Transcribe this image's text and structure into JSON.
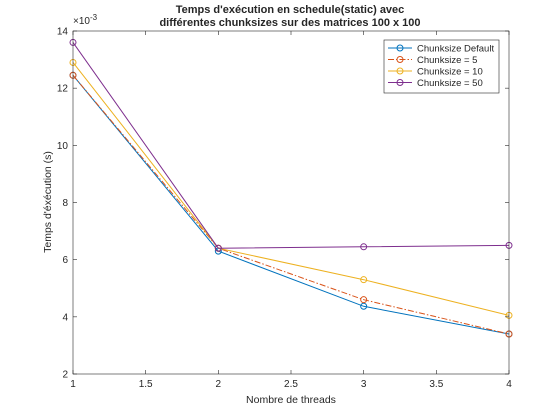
{
  "chart_data": {
    "type": "line",
    "title": [
      "Temps d'exécution en schedule(static) avec",
      "différentes chunksizes sur des matrices 100 x 100"
    ],
    "xlabel": "Nombre de threads",
    "ylabel": "Temps d'éxécution (s)",
    "x": [
      1,
      2,
      3,
      4
    ],
    "xlim": [
      1,
      4
    ],
    "ylim": [
      0.002,
      0.014
    ],
    "x_ticks": [
      "1",
      "1.5",
      "2",
      "2.5",
      "3",
      "3.5",
      "4"
    ],
    "y_ticks": [
      "2",
      "4",
      "6",
      "8",
      "10",
      "12",
      "14"
    ],
    "y_exponent_label": "×10",
    "y_exponent": "-3",
    "grid": false,
    "legend_position": "top-right",
    "series": [
      {
        "name": "Chunksize Default",
        "values": [
          0.01245,
          0.0063,
          0.00437,
          0.0034
        ],
        "color": "#0072BD",
        "dash": "solid",
        "marker": "circle"
      },
      {
        "name": "Chunksize = 5",
        "values": [
          0.01245,
          0.0064,
          0.0046,
          0.0034
        ],
        "color": "#D95319",
        "dash": "dashdot",
        "marker": "circle"
      },
      {
        "name": "Chunksize = 10",
        "values": [
          0.0129,
          0.0064,
          0.0053,
          0.00405
        ],
        "color": "#EDB120",
        "dash": "solid",
        "marker": "circle"
      },
      {
        "name": "Chunksize = 50",
        "values": [
          0.0136,
          0.0064,
          0.00645,
          0.0065
        ],
        "color": "#7E2F8E",
        "dash": "solid",
        "marker": "circle"
      }
    ]
  }
}
